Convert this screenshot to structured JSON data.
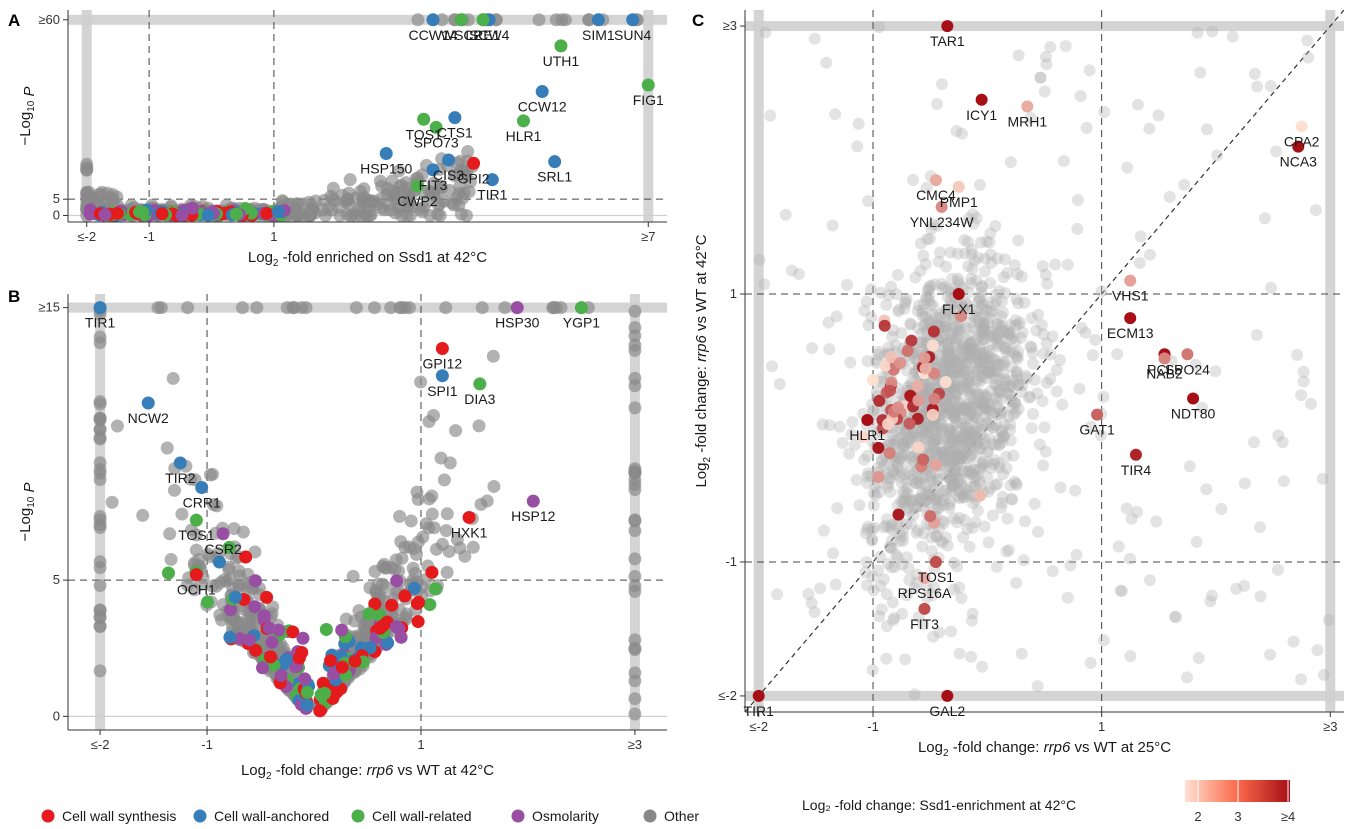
{
  "colors": {
    "cell_wall_synthesis": "#e41a1c",
    "cell_wall_anchored": "#377eb8",
    "cell_wall_related": "#4daf4a",
    "osmolarity": "#984ea3",
    "other": "#888888",
    "scale_low": "#fee0d2",
    "scale_high": "#a50f15"
  },
  "legend": {
    "categories": [
      {
        "key": "cell_wall_synthesis",
        "label": "Cell wall synthesis"
      },
      {
        "key": "cell_wall_anchored",
        "label": "Cell wall-anchored"
      },
      {
        "key": "cell_wall_related",
        "label": "Cell wall-related"
      },
      {
        "key": "osmolarity",
        "label": "Osmolarity"
      },
      {
        "key": "other",
        "label": "Other"
      }
    ],
    "colorbar_title": "Log₂ -fold change: Ssd1-enrichment at 42°C",
    "colorbar_ticks": [
      "2",
      "3",
      "≥4"
    ]
  },
  "chart_data": [
    {
      "panel": "A",
      "type": "scatter",
      "xlabel_prefix": "Log",
      "xlabel_sub": "2",
      "xlabel_suffix": " -fold enriched on Ssd1 at 42°C",
      "ylabel_prefix": "−Log",
      "ylabel_sub": "10",
      "ylabel_suffix": " P",
      "xlim": [
        -2.3,
        7.3
      ],
      "ylim": [
        -2,
        63
      ],
      "xticks": [
        {
          "v": -2,
          "label": "≤-2"
        },
        {
          "v": -1,
          "label": "-1"
        },
        {
          "v": 1,
          "label": "1"
        },
        {
          "v": 7,
          "label": "≥7"
        }
      ],
      "yticks": [
        {
          "v": 0,
          "label": "0"
        },
        {
          "v": 5,
          "label": "5"
        },
        {
          "v": 60,
          "label": "≥60"
        }
      ],
      "vlines": [
        -1,
        1
      ],
      "hlines": [
        5
      ],
      "labels": [
        {
          "text": "CCW14",
          "x": 3.55,
          "y": 60,
          "c": "cell_wall_anchored"
        },
        {
          "text": "WSC2",
          "x": 4.0,
          "y": 60,
          "c": "cell_wall_related"
        },
        {
          "text": "SCW4",
          "x": 4.45,
          "y": 60,
          "c": "cell_wall_anchored"
        },
        {
          "text": "LRE1",
          "x": 4.35,
          "y": 60,
          "c": "cell_wall_related"
        },
        {
          "text": "SIM1",
          "x": 6.2,
          "y": 60,
          "c": "cell_wall_anchored"
        },
        {
          "text": "SUN4",
          "x": 6.75,
          "y": 60,
          "c": "cell_wall_anchored"
        },
        {
          "text": "UTH1",
          "x": 5.6,
          "y": 52,
          "c": "cell_wall_related"
        },
        {
          "text": "CCW12",
          "x": 5.3,
          "y": 38,
          "c": "cell_wall_anchored"
        },
        {
          "text": "FIG1",
          "x": 7.0,
          "y": 40,
          "c": "cell_wall_related"
        },
        {
          "text": "CTS1",
          "x": 3.9,
          "y": 30,
          "c": "cell_wall_anchored"
        },
        {
          "text": "TOS1",
          "x": 3.4,
          "y": 29.5,
          "c": "cell_wall_related"
        },
        {
          "text": "SPO73",
          "x": 3.6,
          "y": 27,
          "c": "cell_wall_related"
        },
        {
          "text": "HLR1",
          "x": 5.0,
          "y": 29,
          "c": "cell_wall_related"
        },
        {
          "text": "HSP150",
          "x": 2.8,
          "y": 19,
          "c": "cell_wall_anchored"
        },
        {
          "text": "CIS3",
          "x": 3.8,
          "y": 17,
          "c": "cell_wall_anchored"
        },
        {
          "text": "GPI2",
          "x": 4.2,
          "y": 16,
          "c": "cell_wall_synthesis"
        },
        {
          "text": "SRL1",
          "x": 5.5,
          "y": 16.5,
          "c": "cell_wall_anchored"
        },
        {
          "text": "FIT3",
          "x": 3.55,
          "y": 14,
          "c": "cell_wall_anchored"
        },
        {
          "text": "TIR1",
          "x": 4.5,
          "y": 11,
          "c": "cell_wall_anchored"
        },
        {
          "text": "CWP2",
          "x": 3.3,
          "y": 9,
          "c": "cell_wall_related"
        }
      ]
    },
    {
      "panel": "B",
      "type": "scatter",
      "xlabel_prefix": "Log",
      "xlabel_sub": "2",
      "xlabel_mid": " -fold change: ",
      "xlabel_italic": "rrp6",
      "xlabel_suffix": " vs WT at 42°C",
      "ylabel_prefix": "−Log",
      "ylabel_sub": "10",
      "ylabel_suffix": " P",
      "xlim": [
        -2.3,
        3.3
      ],
      "ylim": [
        -0.5,
        15.5
      ],
      "xticks": [
        {
          "v": -2,
          "label": "≤-2"
        },
        {
          "v": -1,
          "label": "-1"
        },
        {
          "v": 1,
          "label": "1"
        },
        {
          "v": 3,
          "label": "≥3"
        }
      ],
      "yticks": [
        {
          "v": 0,
          "label": "0"
        },
        {
          "v": 5,
          "label": "5"
        },
        {
          "v": 15,
          "label": "≥15"
        }
      ],
      "vlines": [
        -1,
        1
      ],
      "hlines": [
        5
      ],
      "labels": [
        {
          "text": "TIR1",
          "x": -2.0,
          "y": 15,
          "c": "cell_wall_anchored"
        },
        {
          "text": "HSP30",
          "x": 1.9,
          "y": 15,
          "c": "osmolarity"
        },
        {
          "text": "YGP1",
          "x": 2.5,
          "y": 15,
          "c": "cell_wall_related"
        },
        {
          "text": "GPI12",
          "x": 1.2,
          "y": 13.5,
          "c": "cell_wall_synthesis"
        },
        {
          "text": "SPI1",
          "x": 1.2,
          "y": 12.5,
          "c": "cell_wall_anchored"
        },
        {
          "text": "DIA3",
          "x": 1.55,
          "y": 12.2,
          "c": "cell_wall_related"
        },
        {
          "text": "NCW2",
          "x": -1.55,
          "y": 11.5,
          "c": "cell_wall_anchored"
        },
        {
          "text": "TIR2",
          "x": -1.25,
          "y": 9.3,
          "c": "cell_wall_anchored"
        },
        {
          "text": "CRR1",
          "x": -1.05,
          "y": 8.4,
          "c": "cell_wall_anchored"
        },
        {
          "text": "HSP12",
          "x": 2.05,
          "y": 7.9,
          "c": "osmolarity"
        },
        {
          "text": "TOS1",
          "x": -1.1,
          "y": 7.2,
          "c": "cell_wall_related"
        },
        {
          "text": "HXK1",
          "x": 1.45,
          "y": 7.3,
          "c": "cell_wall_synthesis"
        },
        {
          "text": "CSR2",
          "x": -0.85,
          "y": 6.7,
          "c": "osmolarity"
        },
        {
          "text": "OCH1",
          "x": -1.1,
          "y": 5.2,
          "c": "cell_wall_synthesis"
        }
      ]
    },
    {
      "panel": "C",
      "type": "scatter",
      "xlabel_prefix": "Log",
      "xlabel_sub": "2",
      "xlabel_mid": " -fold change: ",
      "xlabel_italic": "rrp6",
      "xlabel_suffix": " vs WT at 25°C",
      "ylabel_prefix": "Log",
      "ylabel_sub": "2",
      "ylabel_mid": " -fold change: ",
      "ylabel_italic": "rrp6",
      "ylabel_suffix": " vs WT at 42°C",
      "xlim": [
        -2.12,
        3.12
      ],
      "ylim": [
        -2.12,
        3.12
      ],
      "xticks": [
        {
          "v": -2,
          "label": "≤-2"
        },
        {
          "v": -1,
          "label": "-1"
        },
        {
          "v": 1,
          "label": "1"
        },
        {
          "v": 3,
          "label": "≥3"
        }
      ],
      "yticks": [
        {
          "v": -2,
          "label": "≤-2"
        },
        {
          "v": -1,
          "label": "-1"
        },
        {
          "v": 1,
          "label": "1"
        },
        {
          "v": 3,
          "label": "≥3"
        }
      ],
      "vlines": [
        -1,
        1
      ],
      "hlines": [
        -1,
        1
      ],
      "diagonal": true,
      "labels": [
        {
          "text": "TAR1",
          "x": -0.35,
          "y": 3.0,
          "e": 4
        },
        {
          "text": "CPA2",
          "x": 2.75,
          "y": 2.25,
          "e": 2
        },
        {
          "text": "ICY1",
          "x": -0.05,
          "y": 2.45,
          "e": 4
        },
        {
          "text": "MRH1",
          "x": 0.35,
          "y": 2.4,
          "e": 2.5
        },
        {
          "text": "NCA3",
          "x": 2.72,
          "y": 2.1,
          "e": 4
        },
        {
          "text": "CMC4",
          "x": -0.45,
          "y": 1.85,
          "e": 2.5
        },
        {
          "text": "PMP1",
          "x": -0.25,
          "y": 1.8,
          "e": 2.2
        },
        {
          "text": "YNL234W",
          "x": -0.4,
          "y": 1.65,
          "e": 2.8
        },
        {
          "text": "VHS1",
          "x": 1.25,
          "y": 1.1,
          "e": 2.6
        },
        {
          "text": "FLX1",
          "x": -0.25,
          "y": 1.0,
          "e": 4
        },
        {
          "text": "ECM13",
          "x": 1.25,
          "y": 0.82,
          "e": 4
        },
        {
          "text": "PCL5",
          "x": 1.55,
          "y": 0.55,
          "e": 4
        },
        {
          "text": "SPO24",
          "x": 1.75,
          "y": 0.55,
          "e": 3
        },
        {
          "text": "NAB2",
          "x": 1.55,
          "y": 0.52,
          "e": 2.9
        },
        {
          "text": "NDT80",
          "x": 1.8,
          "y": 0.22,
          "e": 4
        },
        {
          "text": "HLR1",
          "x": -1.05,
          "y": 0.06,
          "e": 4
        },
        {
          "text": "GAT1",
          "x": 0.96,
          "y": 0.1,
          "e": 3.2
        },
        {
          "text": "TIR4",
          "x": 1.3,
          "y": -0.2,
          "e": 3.8
        },
        {
          "text": "TOS1",
          "x": -0.45,
          "y": -1.0,
          "e": 3.4
        },
        {
          "text": "RPS16A",
          "x": -0.55,
          "y": -1.12,
          "e": 2.5
        },
        {
          "text": "FIT3",
          "x": -0.55,
          "y": -1.35,
          "e": 3.4
        },
        {
          "text": "TIR1",
          "x": -2.0,
          "y": -2.0,
          "e": 4
        },
        {
          "text": "GAL2",
          "x": -0.35,
          "y": -2.0,
          "e": 4
        }
      ]
    }
  ]
}
